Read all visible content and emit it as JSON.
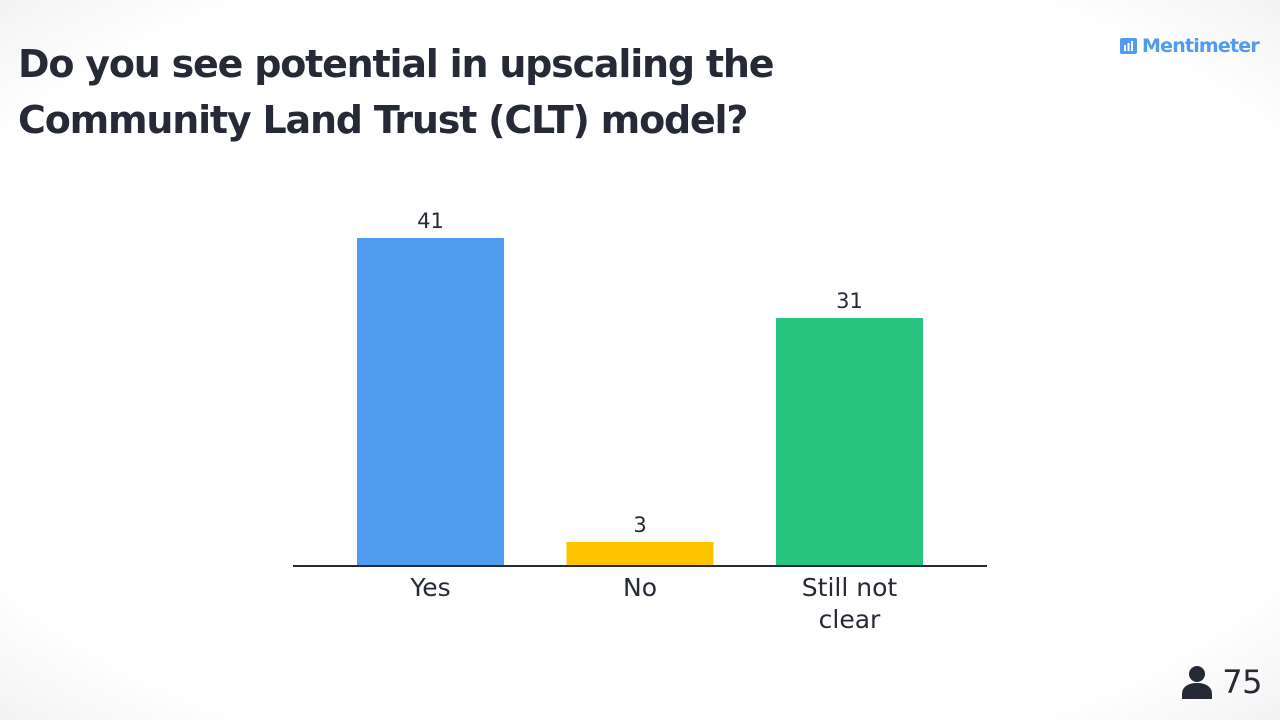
{
  "header": {
    "title": "Do you see potential in upscaling the Community Land Trust (CLT) model?",
    "brand": "Mentimeter",
    "brand_icon": "bar-chart-icon"
  },
  "participants": {
    "icon": "person-icon",
    "count": "75"
  },
  "colors": {
    "text": "#262a36",
    "brand": "#4f9bf0",
    "axis": "#262a36"
  },
  "chart_data": {
    "type": "bar",
    "title": "Do you see potential in upscaling the Community Land Trust (CLT) model?",
    "categories": [
      "Yes",
      "No",
      "Still not clear"
    ],
    "category_lines": [
      [
        "Yes"
      ],
      [
        "No"
      ],
      [
        "Still not",
        "clear"
      ]
    ],
    "values": [
      41,
      3,
      31
    ],
    "value_labels": [
      "41",
      "3",
      "31"
    ],
    "colors": [
      "#4f9bf0",
      "#fec400",
      "#27c47f"
    ],
    "ylim": [
      0,
      41
    ],
    "grid": false,
    "legend": "none",
    "xlabel": "",
    "ylabel": ""
  }
}
